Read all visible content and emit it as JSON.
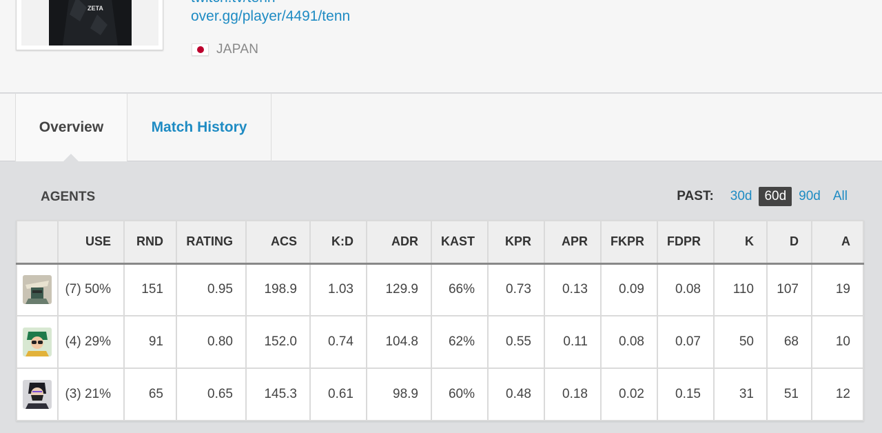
{
  "profile": {
    "twitch_link": "twitch.tv/tenn",
    "overgg_link": "over.gg/player/4491/tenn",
    "country": "JAPAN",
    "jersey_text": "ZETA"
  },
  "tabs": {
    "overview": "Overview",
    "match_history": "Match History"
  },
  "agents_section": {
    "title": "AGENTS",
    "past_label": "PAST:",
    "past_options": [
      "30d",
      "60d",
      "90d",
      "All"
    ],
    "past_selected": "60d"
  },
  "table": {
    "headers": [
      "USE",
      "RND",
      "RATING",
      "ACS",
      "K:D",
      "ADR",
      "KAST",
      "KPR",
      "APR",
      "FKPR",
      "FDPR",
      "K",
      "D",
      "A"
    ],
    "rows": [
      {
        "agent_icon": "agent-1-icon",
        "cells": [
          "(7) 50%",
          "151",
          "0.95",
          "198.9",
          "1.03",
          "129.9",
          "66%",
          "0.73",
          "0.13",
          "0.09",
          "0.08",
          "110",
          "107",
          "19"
        ]
      },
      {
        "agent_icon": "agent-2-icon",
        "cells": [
          "(4) 29%",
          "91",
          "0.80",
          "152.0",
          "0.74",
          "104.8",
          "62%",
          "0.55",
          "0.11",
          "0.08",
          "0.07",
          "50",
          "68",
          "10"
        ]
      },
      {
        "agent_icon": "agent-3-icon",
        "cells": [
          "(3) 21%",
          "65",
          "0.65",
          "145.3",
          "0.61",
          "98.9",
          "60%",
          "0.48",
          "0.18",
          "0.02",
          "0.15",
          "31",
          "51",
          "12"
        ]
      }
    ]
  },
  "colors": {
    "link": "#1e8bc3",
    "active_filter_bg": "#444444",
    "flag_red": "#bc002d"
  }
}
